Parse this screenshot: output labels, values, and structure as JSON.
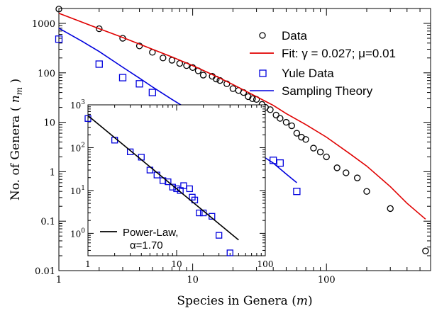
{
  "chart_data": [
    {
      "type": "scatter",
      "role": "main",
      "xscale": "log",
      "yscale": "log",
      "xlim": [
        1,
        600
      ],
      "ylim": [
        0.01,
        2000
      ],
      "x_ticks": [
        1,
        10,
        100
      ],
      "x_tick_labels": [
        "1",
        "10",
        "100"
      ],
      "y_ticks": [
        0.01,
        0.1,
        1,
        10,
        100,
        1000
      ],
      "y_tick_labels": [
        "0.01",
        "0.1",
        "1",
        "10",
        "100",
        "1000"
      ],
      "xlabel": {
        "pre": "Species in Genera (",
        "var": "m",
        "post": ")"
      },
      "ylabel": {
        "pre": "No. of Genera ( ",
        "var": "n",
        "sub": "m",
        "post": " )"
      },
      "legend_position": "top-right",
      "series": [
        {
          "name": "Data",
          "kind": "scatter",
          "marker": "circle",
          "color": "#000000",
          "points": [
            [
              1,
              1950
            ],
            [
              2,
              780
            ],
            [
              3,
              500
            ],
            [
              4,
              350
            ],
            [
              5,
              260
            ],
            [
              6,
              200
            ],
            [
              7,
              180
            ],
            [
              8,
              155
            ],
            [
              9,
              140
            ],
            [
              10,
              128
            ],
            [
              11,
              110
            ],
            [
              12,
              90
            ],
            [
              14,
              85
            ],
            [
              15,
              75
            ],
            [
              16,
              70
            ],
            [
              18,
              60
            ],
            [
              20,
              48
            ],
            [
              22,
              44
            ],
            [
              24,
              40
            ],
            [
              26,
              33
            ],
            [
              28,
              30
            ],
            [
              30,
              29
            ],
            [
              33,
              23
            ],
            [
              35,
              20
            ],
            [
              38,
              18
            ],
            [
              42,
              14
            ],
            [
              45,
              12
            ],
            [
              50,
              10
            ],
            [
              55,
              8.5
            ],
            [
              60,
              6
            ],
            [
              65,
              5
            ],
            [
              70,
              4.5
            ],
            [
              80,
              3
            ],
            [
              90,
              2.5
            ],
            [
              100,
              2
            ],
            [
              120,
              1.2
            ],
            [
              140,
              0.95
            ],
            [
              170,
              0.75
            ],
            [
              200,
              0.4
            ],
            [
              300,
              0.18
            ],
            [
              550,
              0.025
            ]
          ]
        },
        {
          "name": "Fit: γ = 0.027; μ=0.01",
          "kind": "line",
          "color": "#e00000",
          "points": [
            [
              1,
              1600
            ],
            [
              2,
              780
            ],
            [
              3,
              520
            ],
            [
              5,
              300
            ],
            [
              7,
              210
            ],
            [
              10,
              140
            ],
            [
              15,
              85
            ],
            [
              20,
              58
            ],
            [
              30,
              33
            ],
            [
              40,
              22
            ],
            [
              50,
              15
            ],
            [
              70,
              9
            ],
            [
              100,
              5
            ],
            [
              150,
              2.3
            ],
            [
              200,
              1.3
            ],
            [
              300,
              0.5
            ],
            [
              400,
              0.23
            ],
            [
              550,
              0.11
            ]
          ]
        },
        {
          "name": "Yule Data",
          "kind": "scatter",
          "marker": "square",
          "color": "#0000dd",
          "points": [
            [
              1,
              480
            ],
            [
              2,
              150
            ],
            [
              3,
              80
            ],
            [
              4,
              60
            ],
            [
              5,
              40
            ],
            [
              7,
              17
            ],
            [
              8,
              16
            ],
            [
              9,
              14
            ],
            [
              10,
              13
            ],
            [
              11,
              10
            ],
            [
              12,
              10
            ],
            [
              15,
              6
            ],
            [
              18,
              8
            ],
            [
              20,
              8
            ],
            [
              22,
              5
            ],
            [
              25,
              2.5
            ],
            [
              30,
              2.2
            ],
            [
              40,
              1.7
            ],
            [
              45,
              1.5
            ],
            [
              60,
              0.4
            ]
          ]
        },
        {
          "name": "Sampling Theory",
          "kind": "line",
          "color": "#0000dd",
          "points": [
            [
              1,
              800
            ],
            [
              1.5,
              430
            ],
            [
              2,
              270
            ],
            [
              3,
              130
            ],
            [
              4,
              78
            ],
            [
              5,
              52
            ],
            [
              7,
              29
            ],
            [
              10,
              16
            ],
            [
              15,
              8
            ],
            [
              20,
              5
            ],
            [
              30,
              2.5
            ],
            [
              40,
              1.5
            ],
            [
              50,
              0.9
            ],
            [
              60,
              0.6
            ]
          ]
        }
      ]
    },
    {
      "type": "scatter",
      "role": "inset",
      "xscale": "log",
      "yscale": "log",
      "xlim": [
        1,
        100
      ],
      "ylim": [
        0.3,
        1000
      ],
      "x_ticks": [
        1,
        10,
        100
      ],
      "x_tick_labels": [
        "1",
        "10",
        "100"
      ],
      "y_ticks": [
        1,
        10,
        100,
        1000
      ],
      "y_tick_labels": [
        {
          "base": "10",
          "exp": "0"
        },
        {
          "base": "10",
          "exp": "1"
        },
        {
          "base": "10",
          "exp": "2"
        },
        {
          "base": "10",
          "exp": "3"
        }
      ],
      "legend_position": "bottom-left",
      "series": [
        {
          "name": "Yule Data",
          "kind": "scatter",
          "marker": "square",
          "color": "#0000dd",
          "points": [
            [
              1,
              480
            ],
            [
              2,
              150
            ],
            [
              3,
              80
            ],
            [
              4,
              60
            ],
            [
              5,
              30
            ],
            [
              6,
              23
            ],
            [
              7,
              17
            ],
            [
              8,
              16
            ],
            [
              9,
              12
            ],
            [
              10,
              11
            ],
            [
              11,
              10
            ],
            [
              12,
              13
            ],
            [
              14,
              11
            ],
            [
              15,
              7
            ],
            [
              16,
              6
            ],
            [
              18,
              3
            ],
            [
              20,
              3
            ],
            [
              25,
              2.5
            ],
            [
              30,
              0.9
            ],
            [
              40,
              0.35
            ]
          ]
        },
        {
          "name_lines": [
            "Power-Law,",
            "α=1.70"
          ],
          "kind": "line",
          "color": "#000000",
          "points": [
            [
              1,
              560
            ],
            [
              50,
              0.7
            ]
          ]
        }
      ]
    }
  ]
}
